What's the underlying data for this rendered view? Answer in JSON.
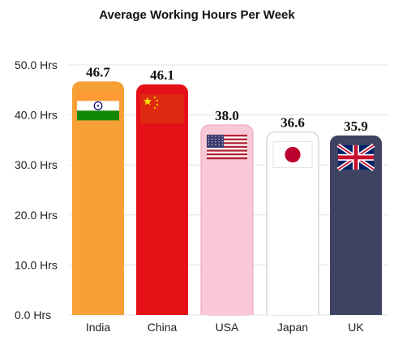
{
  "chart_data": {
    "type": "bar",
    "title": "Average Working Hours Per Week",
    "categories": [
      "India",
      "China",
      "USA",
      "Japan",
      "UK"
    ],
    "values": [
      46.7,
      46.1,
      38.0,
      36.6,
      35.9
    ],
    "value_labels": [
      "46.7",
      "46.1",
      "38.0",
      "36.6",
      "35.9"
    ],
    "y_ticks": [
      0,
      10,
      20,
      30,
      40,
      50
    ],
    "y_tick_labels": [
      "0.0 Hrs",
      "10.0 Hrs",
      "20.0 Hrs",
      "30.0 Hrs",
      "40.0 Hrs",
      "50.0 Hrs"
    ],
    "ylim": [
      0,
      50
    ],
    "grid": true,
    "bar_colors": [
      "#F7A035",
      "#E51016",
      "#F8C8D6",
      "#FFFFFF",
      "#3E4362"
    ],
    "flags": [
      "india-flag",
      "china-flag",
      "usa-flag",
      "japan-flag",
      "uk-flag"
    ]
  }
}
